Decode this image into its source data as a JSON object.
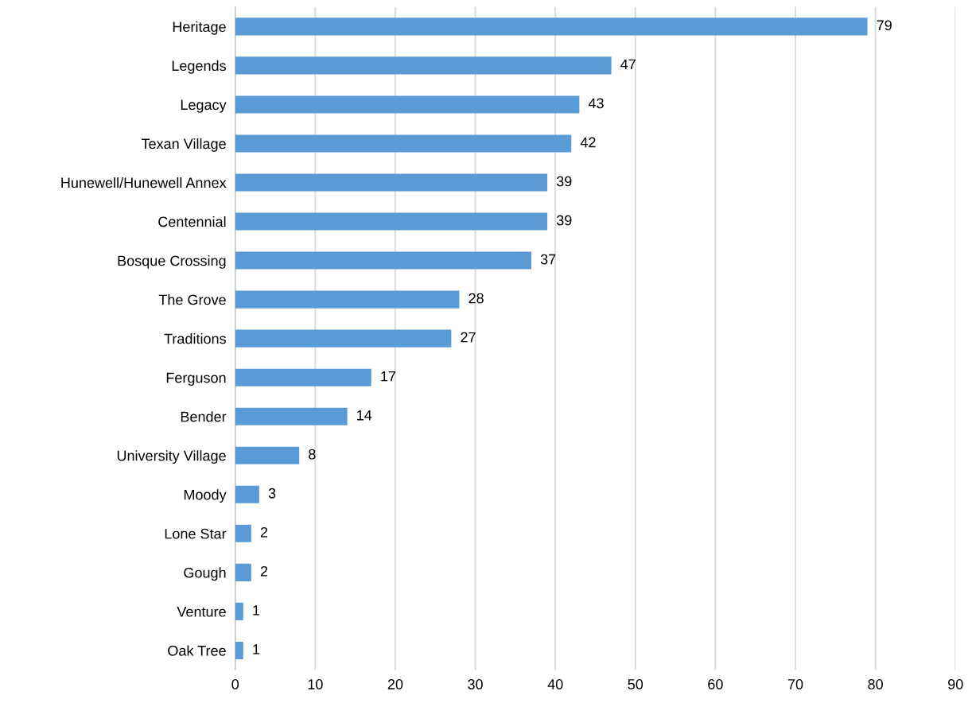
{
  "chart_data": {
    "type": "bar",
    "orientation": "horizontal",
    "categories": [
      "Heritage",
      "Legends",
      "Legacy",
      "Texan Village",
      "Hunewell/Hunewell Annex",
      "Centennial",
      "Bosque Crossing",
      "The Grove",
      "Traditions",
      "Ferguson",
      "Bender",
      "University Village",
      "Moody",
      "Lone Star",
      "Gough",
      "Venture",
      "Oak Tree"
    ],
    "values": [
      79,
      47,
      43,
      42,
      39,
      39,
      37,
      28,
      27,
      17,
      14,
      8,
      3,
      2,
      2,
      1,
      1
    ],
    "color": "#5b9bd5",
    "xlim": [
      0,
      90
    ],
    "xticks": [
      0,
      10,
      20,
      30,
      40,
      50,
      60,
      70,
      80,
      90
    ],
    "grid": "x",
    "data_labels": true
  }
}
